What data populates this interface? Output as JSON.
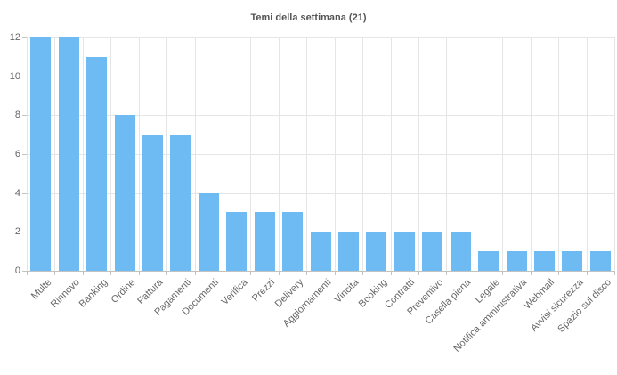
{
  "chart_data": {
    "type": "bar",
    "title": "Temi della settimana (21)",
    "categories": [
      "Multe",
      "Rinnovo",
      "Banking",
      "Ordine",
      "Fattura",
      "Pagamenti",
      "Documenti",
      "Verifica",
      "Prezzi",
      "Delivery",
      "Aggiornamenti",
      "Vincita",
      "Booking",
      "Contratti",
      "Preventivo",
      "Casella piena",
      "Legale",
      "Notifica amministrativa",
      "Webmail",
      "Avvisi sicurezza",
      "Spazio sul disco"
    ],
    "values": [
      12,
      12,
      11,
      8,
      7,
      7,
      4,
      3,
      3,
      3,
      2,
      2,
      2,
      2,
      2,
      2,
      1,
      1,
      1,
      1,
      1
    ],
    "xlabel": "",
    "ylabel": "",
    "ylim": [
      0,
      12
    ],
    "ytick_step": 2,
    "yticks": [
      0,
      2,
      4,
      6,
      8,
      10,
      12
    ],
    "grid": true,
    "legend": false,
    "x_label_rotation_deg": -45,
    "bar_color": "#6ebbf3",
    "gridline_color": "#e5e5e5",
    "axis_color": "#c2c2c2",
    "label_color": "#666666",
    "title_color": "#555555"
  }
}
